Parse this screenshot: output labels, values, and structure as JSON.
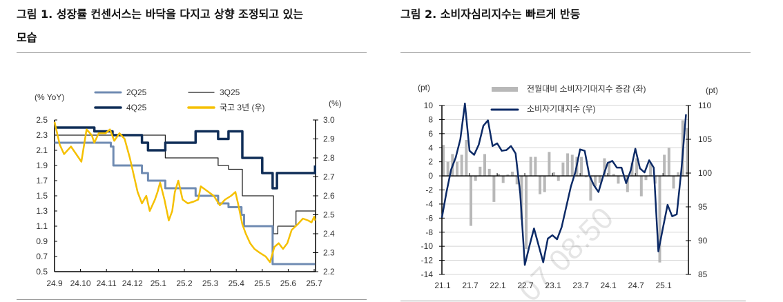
{
  "figure1": {
    "title_line1": "그림 1. 성장률 컨센서스는 바닥을 다지고 상향 조정되고 있는",
    "title_line2": "모습"
  },
  "figure2": {
    "title": "그림 2. 소비자심리지수는 빠르게 반등"
  },
  "watermark": "07 08:50",
  "chart_data": [
    {
      "type": "line",
      "left_axis_label": "(% YoY)",
      "right_axis_label": "(%)",
      "ylim": [
        0.5,
        2.5
      ],
      "y_ticks": [
        "2.5",
        "2.3",
        "2.1",
        "1.9",
        "1.7",
        "1.5",
        "1.3",
        "1.1",
        "0.9",
        "0.7",
        "0.5"
      ],
      "y2lim": [
        2.2,
        3.0
      ],
      "y2_ticks": [
        "3.0",
        "2.9",
        "2.8",
        "2.7",
        "2.6",
        "2.5",
        "2.4",
        "2.3",
        "2.2"
      ],
      "x_ticks": [
        "24.9",
        "24.10",
        "24.11",
        "24.12",
        "25.1",
        "25.2",
        "25.3",
        "25.4",
        "25.5",
        "25.6",
        "25.7"
      ],
      "legend_position": "top",
      "series": [
        {
          "name": "2Q25",
          "axis": "left",
          "color": "#6f8bb2",
          "step": true,
          "points": [
            [
              "2024-09-01",
              2.2
            ],
            [
              "2024-11-06",
              2.15
            ],
            [
              "2024-11-09",
              1.9
            ],
            [
              "2024-12-12",
              1.8
            ],
            [
              "2024-12-19",
              1.7
            ],
            [
              "2025-01-09",
              1.6
            ],
            [
              "2025-02-14",
              1.5
            ],
            [
              "2025-03-10",
              1.4
            ],
            [
              "2025-03-22",
              1.35
            ],
            [
              "2025-04-07",
              1.25
            ],
            [
              "2025-04-10",
              1.1
            ],
            [
              "2025-05-13",
              0.6
            ],
            [
              "2025-07-02",
              0.6
            ]
          ]
        },
        {
          "name": "3Q25",
          "axis": "left",
          "color": "#222222",
          "step": true,
          "points": [
            [
              "2024-09-01",
              2.3
            ],
            [
              "2025-01-09",
              2.0
            ],
            [
              "2025-03-10",
              1.9
            ],
            [
              "2025-03-22",
              1.85
            ],
            [
              "2025-04-08",
              1.5
            ],
            [
              "2025-05-14",
              1.0
            ],
            [
              "2025-05-19",
              1.1
            ],
            [
              "2025-06-10",
              1.3
            ],
            [
              "2025-07-02",
              1.3
            ]
          ]
        },
        {
          "name": "4Q25",
          "axis": "left",
          "color": "#0f2d57",
          "step": true,
          "points": [
            [
              "2024-09-01",
              2.4
            ],
            [
              "2024-10-17",
              2.35
            ],
            [
              "2024-11-08",
              2.3
            ],
            [
              "2024-12-12",
              2.2
            ],
            [
              "2024-12-19",
              2.1
            ],
            [
              "2025-01-09",
              2.2
            ],
            [
              "2025-02-14",
              2.35
            ],
            [
              "2025-03-10",
              2.25
            ],
            [
              "2025-03-22",
              2.35
            ],
            [
              "2025-04-08",
              2.0
            ],
            [
              "2025-05-01",
              1.8
            ],
            [
              "2025-05-13",
              1.6
            ],
            [
              "2025-05-18",
              1.8
            ],
            [
              "2025-07-01",
              1.8
            ],
            [
              "2025-07-02",
              1.9
            ]
          ]
        },
        {
          "name": "국고 3년 (우)",
          "axis": "right",
          "color": "#f5c000",
          "step": false,
          "points": [
            [
              "2024-09-01",
              2.99
            ],
            [
              "2024-09-07",
              2.87
            ],
            [
              "2024-09-12",
              2.82
            ],
            [
              "2024-09-20",
              2.86
            ],
            [
              "2024-09-26",
              2.82
            ],
            [
              "2024-10-02",
              2.78
            ],
            [
              "2024-10-08",
              2.95
            ],
            [
              "2024-10-14",
              2.92
            ],
            [
              "2024-10-17",
              2.88
            ],
            [
              "2024-10-22",
              2.93
            ],
            [
              "2024-10-30",
              2.93
            ],
            [
              "2024-11-05",
              2.95
            ],
            [
              "2024-11-10",
              2.89
            ],
            [
              "2024-11-16",
              2.93
            ],
            [
              "2024-11-22",
              2.9
            ],
            [
              "2024-11-28",
              2.8
            ],
            [
              "2024-12-02",
              2.72
            ],
            [
              "2024-12-07",
              2.62
            ],
            [
              "2024-12-12",
              2.56
            ],
            [
              "2024-12-17",
              2.6
            ],
            [
              "2024-12-21",
              2.52
            ],
            [
              "2024-12-27",
              2.58
            ],
            [
              "2024-12-30",
              2.62
            ],
            [
              "2025-01-03",
              2.67
            ],
            [
              "2025-01-08",
              2.58
            ],
            [
              "2025-01-13",
              2.47
            ],
            [
              "2025-01-17",
              2.52
            ],
            [
              "2025-01-20",
              2.62
            ],
            [
              "2025-01-24",
              2.68
            ],
            [
              "2025-01-29",
              2.58
            ],
            [
              "2025-02-05",
              2.56
            ],
            [
              "2025-02-12",
              2.57
            ],
            [
              "2025-02-17",
              2.58
            ],
            [
              "2025-02-20",
              2.65
            ],
            [
              "2025-02-26",
              2.63
            ],
            [
              "2025-03-05",
              2.6
            ],
            [
              "2025-03-12",
              2.55
            ],
            [
              "2025-03-18",
              2.58
            ],
            [
              "2025-03-25",
              2.6
            ],
            [
              "2025-03-30",
              2.62
            ],
            [
              "2025-04-03",
              2.56
            ],
            [
              "2025-04-08",
              2.45
            ],
            [
              "2025-04-12",
              2.4
            ],
            [
              "2025-04-17",
              2.35
            ],
            [
              "2025-04-22",
              2.32
            ],
            [
              "2025-04-28",
              2.3
            ],
            [
              "2025-05-05",
              2.28
            ],
            [
              "2025-05-10",
              2.25
            ],
            [
              "2025-05-15",
              2.33
            ],
            [
              "2025-05-20",
              2.35
            ],
            [
              "2025-05-25",
              2.32
            ],
            [
              "2025-05-30",
              2.35
            ],
            [
              "2025-06-05",
              2.42
            ],
            [
              "2025-06-12",
              2.45
            ],
            [
              "2025-06-18",
              2.48
            ],
            [
              "2025-06-24",
              2.47
            ],
            [
              "2025-06-28",
              2.46
            ],
            [
              "2025-07-01",
              2.49
            ],
            [
              "2025-07-02",
              2.47
            ]
          ]
        }
      ]
    },
    {
      "type": "bar+line",
      "left_axis_label": "(pt)",
      "right_axis_label": "(pt)",
      "ylim": [
        -14,
        10
      ],
      "y_ticks": [
        "10",
        "8",
        "6",
        "4",
        "2",
        "0",
        "-2",
        "-4",
        "-6",
        "-8",
        "-10",
        "-12",
        "-14"
      ],
      "y2lim": [
        85,
        110
      ],
      "y2_ticks": [
        "110",
        "105",
        "100",
        "95",
        "90",
        "85"
      ],
      "x_ticks": [
        "21.1",
        "21.7",
        "22.1",
        "22.7",
        "23.1",
        "23.7",
        "24.1",
        "24.7",
        "25.1"
      ],
      "x_start": "2021-01",
      "grid": true,
      "legend_position": "top",
      "series": [
        {
          "name": "전월대비 소비자기대지수 증감 (좌)",
          "type": "bar",
          "axis": "left",
          "color": "#b8b8b8",
          "values": [
            4.4,
            2.0,
            3.1,
            2.0,
            3.0,
            5.1,
            -7.1,
            -0.7,
            1.3,
            3.1,
            1.0,
            -3.7,
            0.3,
            -1.0,
            0.2,
            0.6,
            -1.2,
            -6.2,
            -10.4,
            2.7,
            2.7,
            -2.6,
            -2.3,
            3.4,
            0.5,
            -0.7,
            1.9,
            3.2,
            3.0,
            2.7,
            2.7,
            -0.2,
            -3.5,
            -1.5,
            -1.0,
            2.5,
            2.0,
            0.3,
            -1.1,
            0.0,
            -2.3,
            1.9,
            2.5,
            -2.9,
            -0.6,
            1.8,
            -1.1,
            -12.3,
            3.0,
            4.0,
            -1.8,
            0.5,
            7.9,
            6.8
          ]
        },
        {
          "name": "소비자기대지수 (우)",
          "type": "line",
          "axis": "right",
          "color": "#0c2a66",
          "values": [
            93.4,
            97.2,
            100.5,
            102.3,
            105.0,
            110.3,
            103.3,
            102.7,
            104.2,
            107.0,
            107.8,
            104.0,
            104.4,
            103.3,
            103.4,
            104.0,
            102.9,
            97.0,
            86.4,
            89.2,
            91.8,
            89.3,
            86.8,
            90.3,
            90.8,
            90.2,
            92.0,
            95.0,
            98.0,
            100.2,
            103.5,
            103.3,
            99.7,
            98.2,
            97.2,
            99.5,
            101.5,
            101.8,
            100.8,
            100.8,
            98.5,
            100.4,
            103.6,
            100.7,
            100.1,
            101.9,
            100.8,
            88.4,
            91.9,
            95.3,
            93.6,
            93.9,
            100.5,
            108.7
          ]
        }
      ]
    }
  ]
}
